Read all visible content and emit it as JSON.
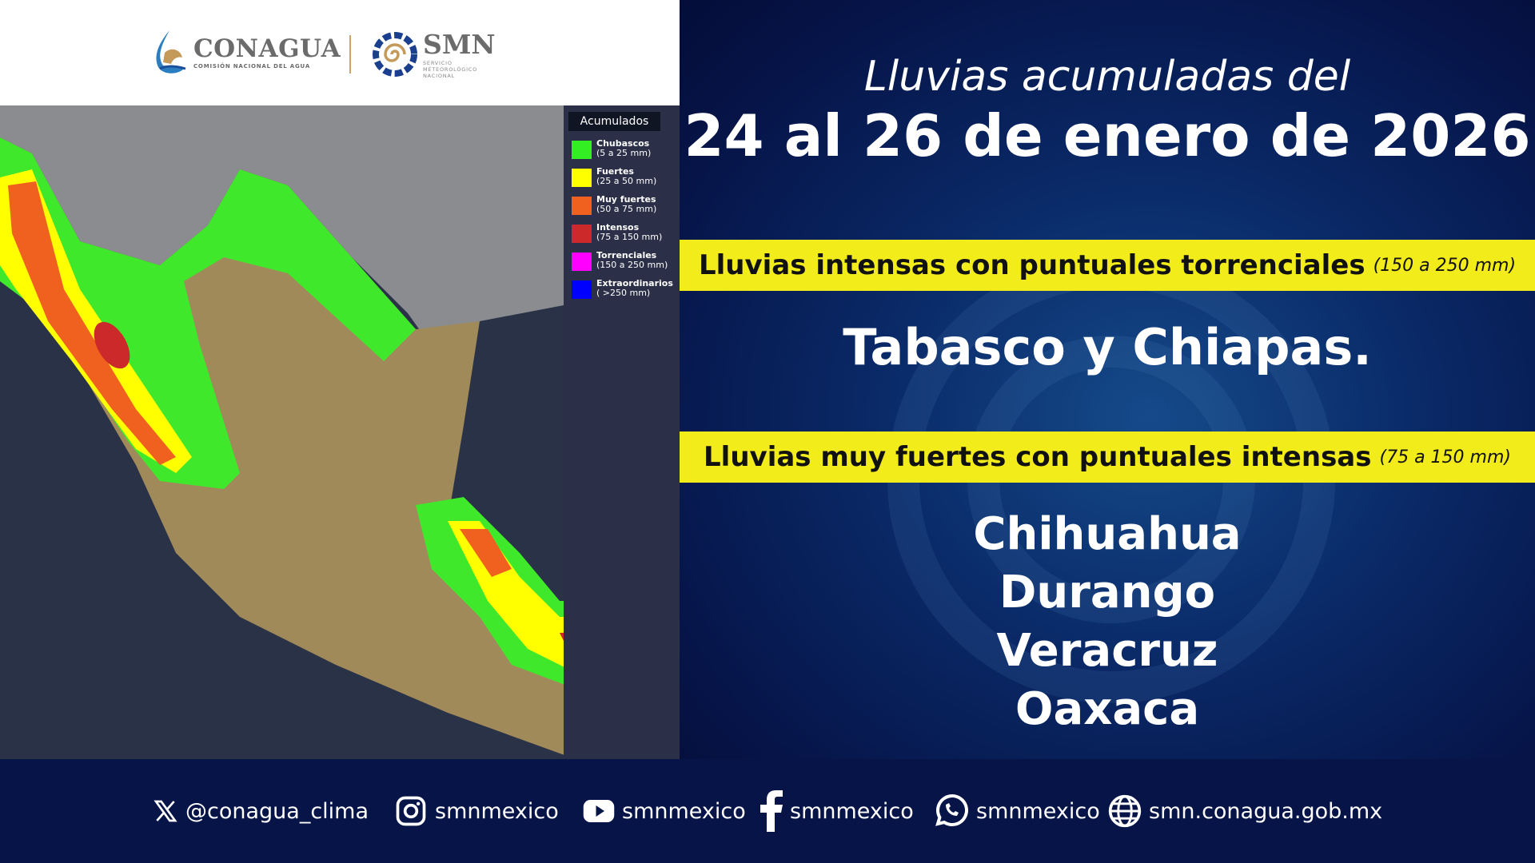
{
  "header": {
    "conagua": {
      "name": "CONAGUA",
      "subtitle": "COMISIÓN NACIONAL DEL AGUA"
    },
    "smn": {
      "name": "SMN",
      "subtitle": [
        "SERVICIO",
        "METEOROLÓGICO",
        "NACIONAL"
      ]
    }
  },
  "legend": {
    "title": "Acumulados",
    "items": [
      {
        "label": "Chubascos",
        "range": "(5 a 25 mm)",
        "color": "#33ee22"
      },
      {
        "label": "Fuertes",
        "range": "(25 a 50 mm)",
        "color": "#ffff00"
      },
      {
        "label": "Muy fuertes",
        "range": "(50 a 75 mm)",
        "color": "#f0601e"
      },
      {
        "label": "Intensos",
        "range": "(75 a 150 mm)",
        "color": "#cc2a2a"
      },
      {
        "label": "Torrenciales",
        "range": "(150 a 250 mm)",
        "color": "#ff00ff"
      },
      {
        "label": "Extraordinarios",
        "range": "( >250 mm)",
        "color": "#0000ff"
      }
    ]
  },
  "main": {
    "title_line1": "Lluvias acumuladas del",
    "title_line2": "24 al 26 de enero de 2026",
    "band1": {
      "label": "Lluvias intensas con puntuales torrenciales",
      "range": "(150 a 250 mm)"
    },
    "states1": "Tabasco y Chiapas.",
    "band2": {
      "label": "Lluvias muy fuertes con puntuales intensas",
      "range": "(75 a 150 mm)"
    },
    "states2": [
      "Chihuahua",
      "Durango",
      "Veracruz",
      "Oaxaca"
    ]
  },
  "footer": {
    "x": "@conagua_clima",
    "instagram": "smnmexico",
    "youtube": "smnmexico",
    "facebook": "smnmexico",
    "whatsapp": "smnmexico",
    "web": "smn.conagua.gob.mx"
  },
  "colors": {
    "band": "#f2ec1a",
    "background": "#061a52"
  }
}
